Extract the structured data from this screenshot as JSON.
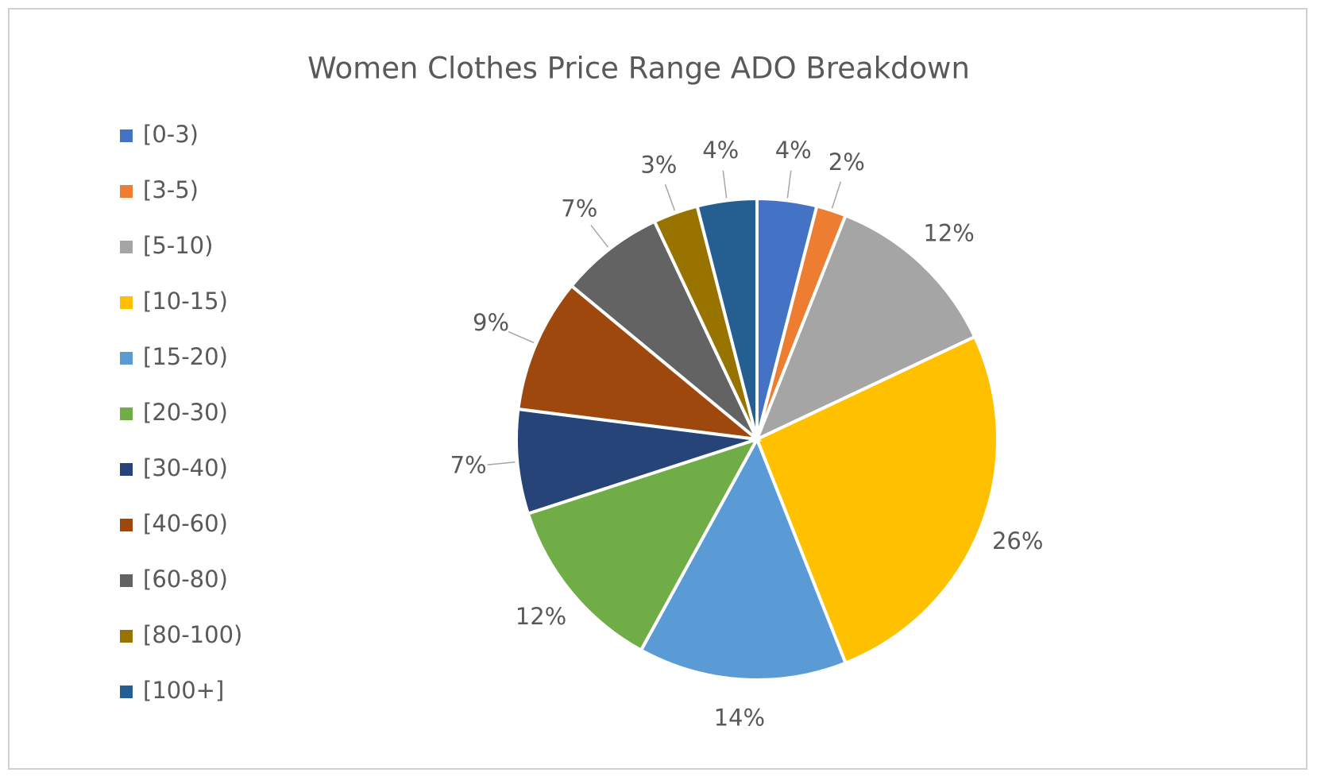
{
  "chart_data": {
    "type": "pie",
    "title": "Women Clothes Price Range ADO Breakdown",
    "categories": [
      "[0-3)",
      "[3-5)",
      "[5-10)",
      "[10-15)",
      "[15-20)",
      "[20-30)",
      "[30-40)",
      "[40-60)",
      "[60-80)",
      "[80-100)",
      "[100+]"
    ],
    "values": [
      4,
      2,
      12,
      26,
      14,
      12,
      7,
      9,
      7,
      3,
      4
    ],
    "value_labels": [
      "4%",
      "2%",
      "12%",
      "26%",
      "14%",
      "12%",
      "7%",
      "9%",
      "7%",
      "3%",
      "4%"
    ],
    "colors": [
      "#4472c4",
      "#ed7d31",
      "#a5a5a5",
      "#ffc000",
      "#5b9bd5",
      "#70ad47",
      "#264478",
      "#9e480e",
      "#636363",
      "#997300",
      "#255e91"
    ],
    "legend": "left"
  }
}
